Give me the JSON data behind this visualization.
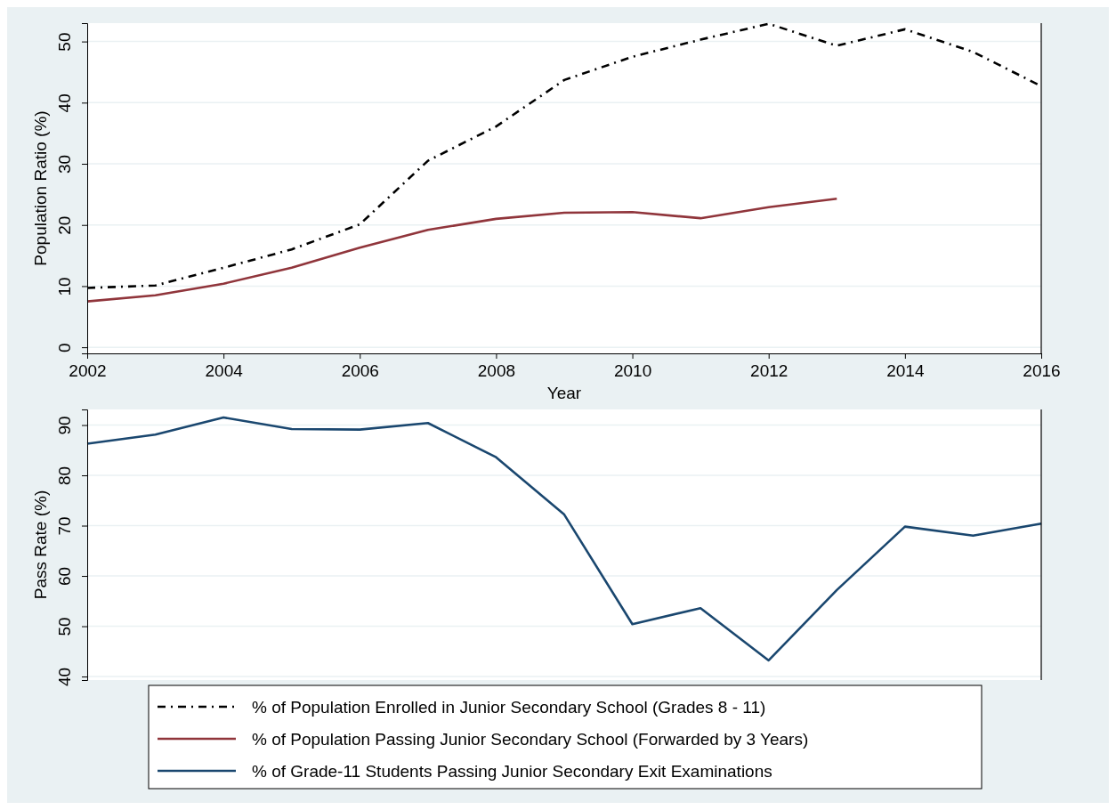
{
  "chart_data": [
    {
      "type": "line",
      "xlabel": "Year",
      "ylabel": "Population Ratio (%)",
      "x": [
        2002,
        2003,
        2004,
        2005,
        2006,
        2007,
        2008,
        2009,
        2010,
        2011,
        2012,
        2013,
        2014,
        2015,
        2016
      ],
      "series": [
        {
          "name": "% of Population Enrolled in Junior Secondary School (Grades 8 - 11)",
          "color": "#000000",
          "line_style": "dashed",
          "values": [
            9.7,
            10.1,
            13.0,
            16.0,
            20.1,
            30.5,
            36.1,
            43.7,
            47.5,
            50.3,
            52.9,
            49.3,
            52.0,
            48.3,
            42.7
          ]
        },
        {
          "name": "% of Population Passing Junior Secondary School (Forwarded by 3 Years)",
          "color": "#90353b",
          "line_style": "solid",
          "values": [
            7.5,
            8.5,
            10.4,
            13.0,
            16.3,
            19.2,
            21.0,
            22.0,
            22.1,
            21.1,
            22.9,
            24.3,
            null,
            null,
            null
          ]
        }
      ],
      "xlim": [
        2002,
        2016
      ],
      "xticks": [
        2002,
        2004,
        2006,
        2008,
        2010,
        2012,
        2014,
        2016
      ],
      "ylim": [
        -1,
        53
      ],
      "yticks": [
        0,
        10,
        20,
        30,
        40,
        50
      ],
      "grid": "y",
      "legend": "bottom"
    },
    {
      "type": "line",
      "ylabel": "Pass Rate (%)",
      "x": [
        2002,
        2003,
        2004,
        2005,
        2006,
        2007,
        2008,
        2009,
        2010,
        2011,
        2012,
        2013,
        2014,
        2015,
        2016
      ],
      "series": [
        {
          "name": "% of Grade-11 Students Passing Junior Secondary Exit Examinations",
          "color": "#1a476f",
          "line_style": "solid",
          "values": [
            86.3,
            88.1,
            91.5,
            89.2,
            89.1,
            90.4,
            83.6,
            72.2,
            50.4,
            53.6,
            43.2,
            57.2,
            69.8,
            68.0,
            70.4
          ]
        }
      ],
      "xlim": [
        2002,
        2016
      ],
      "ylim": [
        39.3,
        93.1
      ],
      "yticks": [
        40,
        50,
        60,
        70,
        80,
        90
      ],
      "grid": "y",
      "legend": "bottom",
      "tick_labels": "y"
    }
  ]
}
